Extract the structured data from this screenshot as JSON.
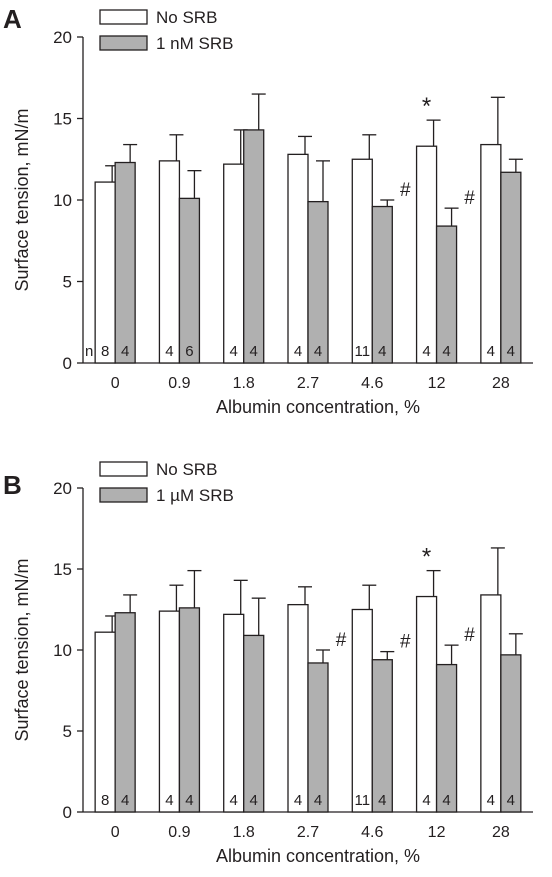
{
  "colors": {
    "no_srb_fill": "#ffffff",
    "srb_fill": "#b0b0b0",
    "stroke": "#231f20"
  },
  "chart_data": [
    {
      "panel": "A",
      "type": "bar",
      "xlabel": "Albumin concentration, %",
      "ylabel": "Surface tension, mN/m",
      "ylim": [
        0,
        20
      ],
      "yticks": [
        0,
        5,
        10,
        15,
        20
      ],
      "grid": false,
      "legend_position": "top-left",
      "categories": [
        "0",
        "0.9",
        "1.8",
        "2.7",
        "4.6",
        "12",
        "28"
      ],
      "n_prefix": "n =",
      "series": [
        {
          "name": "No SRB",
          "values": [
            11.1,
            12.4,
            12.2,
            12.8,
            12.5,
            13.3,
            13.4
          ],
          "error": [
            1.0,
            1.6,
            2.1,
            1.1,
            1.5,
            1.6,
            2.9
          ],
          "n": [
            "8",
            "4",
            "4",
            "4",
            "11",
            "4",
            "4"
          ],
          "markers": [
            "",
            "",
            "",
            "",
            "",
            "*",
            ""
          ]
        },
        {
          "name": "1 nM SRB",
          "values": [
            12.3,
            10.1,
            14.3,
            9.9,
            9.6,
            8.4,
            11.7
          ],
          "error": [
            1.1,
            1.7,
            2.2,
            2.5,
            0.4,
            1.1,
            0.8
          ],
          "n": [
            "4",
            "6",
            "4",
            "4",
            "4",
            "4",
            "4"
          ],
          "markers": [
            "",
            "",
            "",
            "",
            "#",
            "#",
            ""
          ]
        }
      ]
    },
    {
      "panel": "B",
      "type": "bar",
      "xlabel": "Albumin concentration, %",
      "ylabel": "Surface tension, mN/m",
      "ylim": [
        0,
        20
      ],
      "yticks": [
        0,
        5,
        10,
        15,
        20
      ],
      "grid": false,
      "legend_position": "top-left",
      "categories": [
        "0",
        "0.9",
        "1.8",
        "2.7",
        "4.6",
        "12",
        "28"
      ],
      "n_prefix": "",
      "series": [
        {
          "name": "No SRB",
          "values": [
            11.1,
            12.4,
            12.2,
            12.8,
            12.5,
            13.3,
            13.4
          ],
          "error": [
            1.0,
            1.6,
            2.1,
            1.1,
            1.5,
            1.6,
            2.9
          ],
          "n": [
            "8",
            "4",
            "4",
            "4",
            "11",
            "4",
            "4"
          ],
          "markers": [
            "",
            "",
            "",
            "",
            "",
            "*",
            ""
          ]
        },
        {
          "name": "1 µM SRB",
          "values": [
            12.3,
            12.6,
            10.9,
            9.2,
            9.4,
            9.1,
            9.7
          ],
          "error": [
            1.1,
            2.3,
            2.3,
            0.8,
            0.5,
            1.2,
            1.3
          ],
          "n": [
            "4",
            "4",
            "4",
            "4",
            "4",
            "4",
            "4"
          ],
          "markers": [
            "",
            "",
            "",
            "#",
            "#",
            "#",
            ""
          ]
        }
      ]
    }
  ]
}
